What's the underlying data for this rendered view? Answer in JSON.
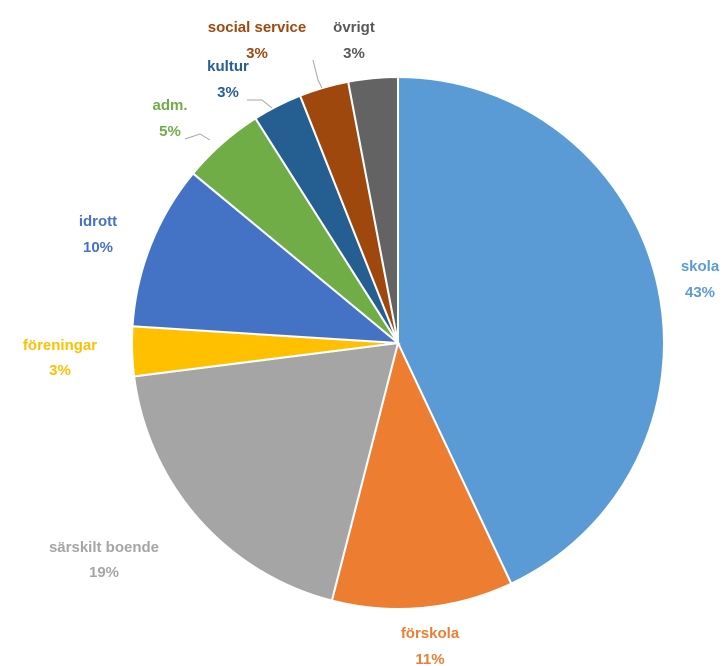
{
  "chart_data": {
    "type": "pie",
    "title": "",
    "start": "12 o'clock",
    "direction": "clockwise",
    "slices": [
      {
        "label": "skola",
        "value": 43,
        "display": "43%",
        "color": "#5b9bd5"
      },
      {
        "label": "förskola",
        "value": 11,
        "display": "11%",
        "color": "#ed7d31"
      },
      {
        "label": "särskilt boende",
        "value": 19,
        "display": "19%",
        "color": "#a5a5a5"
      },
      {
        "label": "föreningar",
        "value": 3,
        "display": "3%",
        "color": "#ffc000"
      },
      {
        "label": "idrott",
        "value": 10,
        "display": "10%",
        "color": "#4472c4"
      },
      {
        "label": "adm.",
        "value": 5,
        "display": "5%",
        "color": "#70ad47"
      },
      {
        "label": "kultur",
        "value": 3,
        "display": "3%",
        "color": "#255e91"
      },
      {
        "label": "social service",
        "value": 3,
        "display": "3%",
        "color": "#9e480e"
      },
      {
        "label": "övrigt",
        "value": 3,
        "display": "3%",
        "color": "#636363"
      }
    ]
  }
}
